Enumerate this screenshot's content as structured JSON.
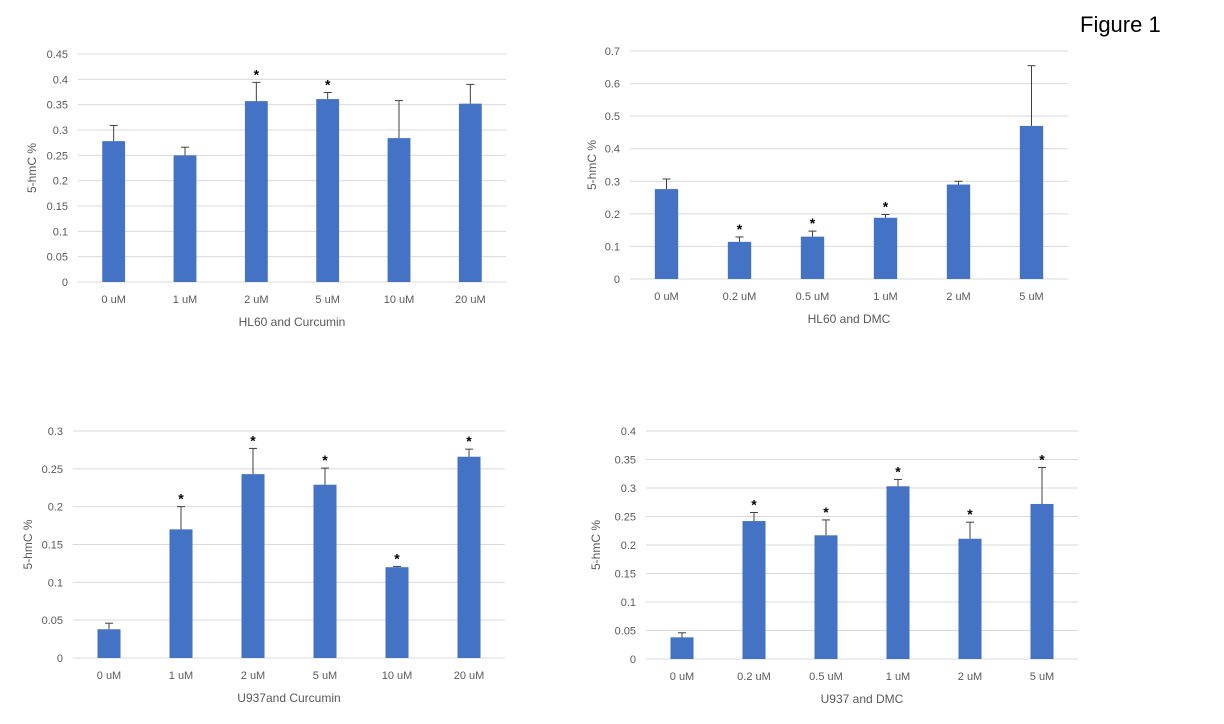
{
  "figure_title": "Figure 1",
  "chart_data": [
    {
      "type": "bar",
      "title": "",
      "xlabel": "HL60 and Curcumin",
      "ylabel": "5-hmC %",
      "categories": [
        "0 uM",
        "1 uM",
        "2 uM",
        "5 uM",
        "10 uM",
        "20 uM"
      ],
      "values": [
        0.278,
        0.25,
        0.357,
        0.361,
        0.284,
        0.352
      ],
      "error": [
        0.031,
        0.016,
        0.037,
        0.013,
        0.074,
        0.038
      ],
      "significant": [
        false,
        false,
        true,
        true,
        false,
        false
      ],
      "ylim": [
        0,
        0.45
      ],
      "yticks": [
        0,
        0.05,
        0.1,
        0.15,
        0.2,
        0.25,
        0.3,
        0.35,
        0.4,
        0.45
      ],
      "ytick_labels": [
        "0",
        "0.05",
        "0.1",
        "0.15",
        "0.2",
        "0.25",
        "0.3",
        "0.35",
        "0.4",
        "0.45"
      ],
      "grid": true,
      "color": "#4472C4"
    },
    {
      "type": "bar",
      "title": "",
      "xlabel": "HL60 and DMC",
      "ylabel": "5-hmC %",
      "categories": [
        "0 uM",
        "0.2 uM",
        "0.5 uM",
        "1 uM",
        "2 uM",
        "5 uM"
      ],
      "values": [
        0.276,
        0.114,
        0.13,
        0.188,
        0.29,
        0.47
      ],
      "error": [
        0.031,
        0.015,
        0.017,
        0.01,
        0.01,
        0.185
      ],
      "significant": [
        false,
        true,
        true,
        true,
        false,
        false
      ],
      "ylim": [
        0,
        0.7
      ],
      "yticks": [
        0,
        0.1,
        0.2,
        0.3,
        0.4,
        0.5,
        0.6,
        0.7
      ],
      "ytick_labels": [
        "0",
        "0.1",
        "0.2",
        "0.3",
        "0.4",
        "0.5",
        "0.6",
        "0.7"
      ],
      "grid": true,
      "color": "#4472C4"
    },
    {
      "type": "bar",
      "title": "",
      "xlabel": "U937and Curcumin",
      "ylabel": "5-hmC %",
      "categories": [
        "0 uM",
        "1 uM",
        "2 uM",
        "5 uM",
        "10 uM",
        "20 uM"
      ],
      "values": [
        0.038,
        0.17,
        0.243,
        0.229,
        0.12,
        0.266
      ],
      "error": [
        0.008,
        0.03,
        0.034,
        0.022,
        0.001,
        0.01
      ],
      "significant": [
        false,
        true,
        true,
        true,
        true,
        true
      ],
      "ylim": [
        0,
        0.3
      ],
      "yticks": [
        0,
        0.05,
        0.1,
        0.15,
        0.2,
        0.25,
        0.3
      ],
      "ytick_labels": [
        "0",
        "0.05",
        "0.1",
        "0.15",
        "0.2",
        "0.25",
        "0.3"
      ],
      "grid": true,
      "color": "#4472C4"
    },
    {
      "type": "bar",
      "title": "",
      "xlabel": "U937 and DMC",
      "ylabel": "5-hmC %",
      "categories": [
        "0 uM",
        "0.2 uM",
        "0.5 uM",
        "1 uM",
        "2 uM",
        "5 uM"
      ],
      "values": [
        0.038,
        0.242,
        0.217,
        0.303,
        0.211,
        0.272
      ],
      "error": [
        0.008,
        0.015,
        0.027,
        0.012,
        0.029,
        0.064
      ],
      "significant": [
        false,
        true,
        true,
        true,
        true,
        true
      ],
      "ylim": [
        0,
        0.4
      ],
      "yticks": [
        0,
        0.05,
        0.1,
        0.15,
        0.2,
        0.25,
        0.3,
        0.35,
        0.4
      ],
      "ytick_labels": [
        "0",
        "0.05",
        "0.1",
        "0.15",
        "0.2",
        "0.25",
        "0.3",
        "0.35",
        "0.4"
      ],
      "grid": true,
      "color": "#4472C4"
    }
  ],
  "significance_marker": "*"
}
